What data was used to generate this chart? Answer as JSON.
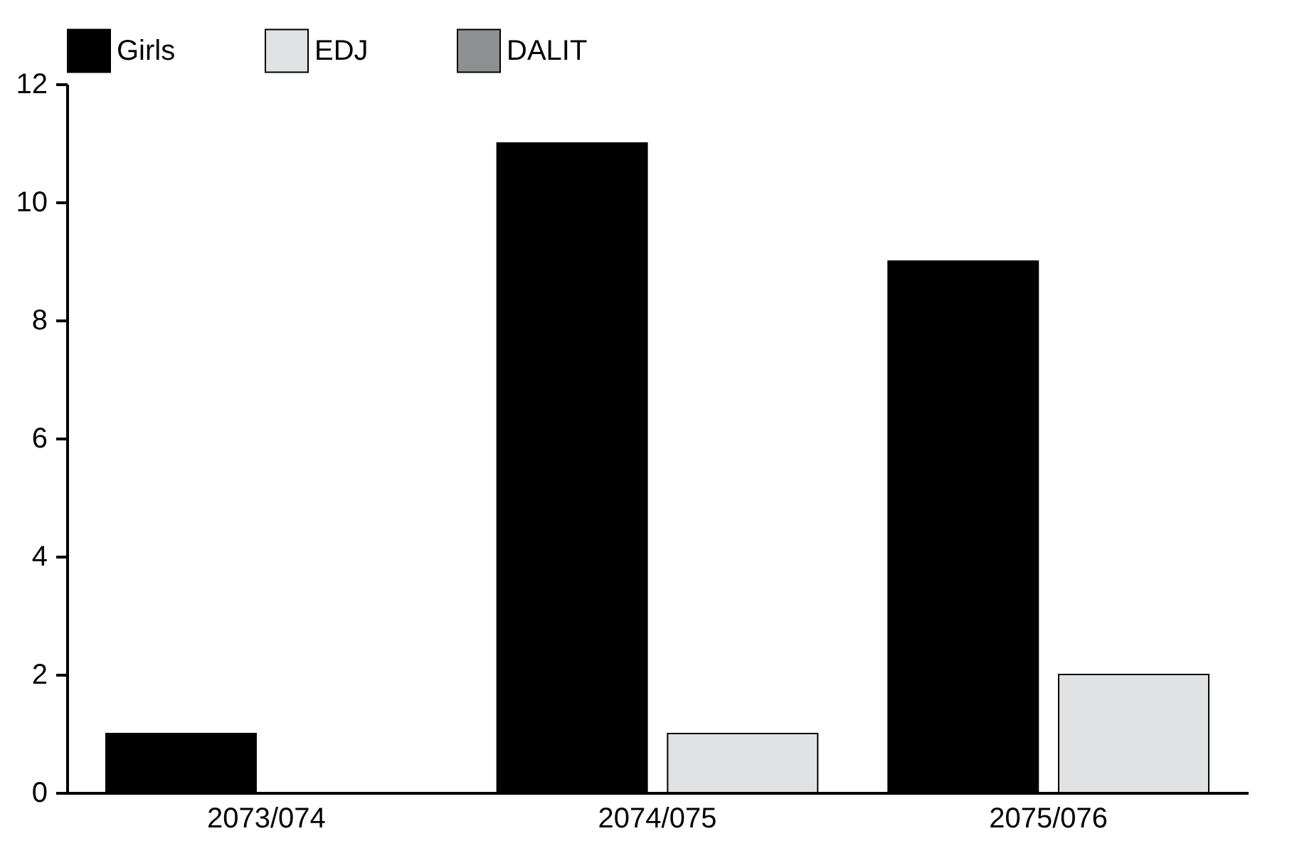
{
  "chart_data": {
    "type": "bar",
    "categories": [
      "2073/074",
      "2074/075",
      "2075/076"
    ],
    "series": [
      {
        "name": "Girls",
        "color": "#000000",
        "values": [
          1,
          11,
          9
        ]
      },
      {
        "name": "EDJ",
        "color": "#e1e2e4",
        "values": [
          null,
          1,
          2
        ]
      },
      {
        "name": "DALIT",
        "color": "#8e8f91",
        "values": [
          null,
          null,
          null
        ]
      }
    ],
    "ylim": [
      0,
      12
    ],
    "yticks": [
      0,
      2,
      4,
      6,
      8,
      10,
      12
    ],
    "grid": false,
    "legend": "top left"
  }
}
